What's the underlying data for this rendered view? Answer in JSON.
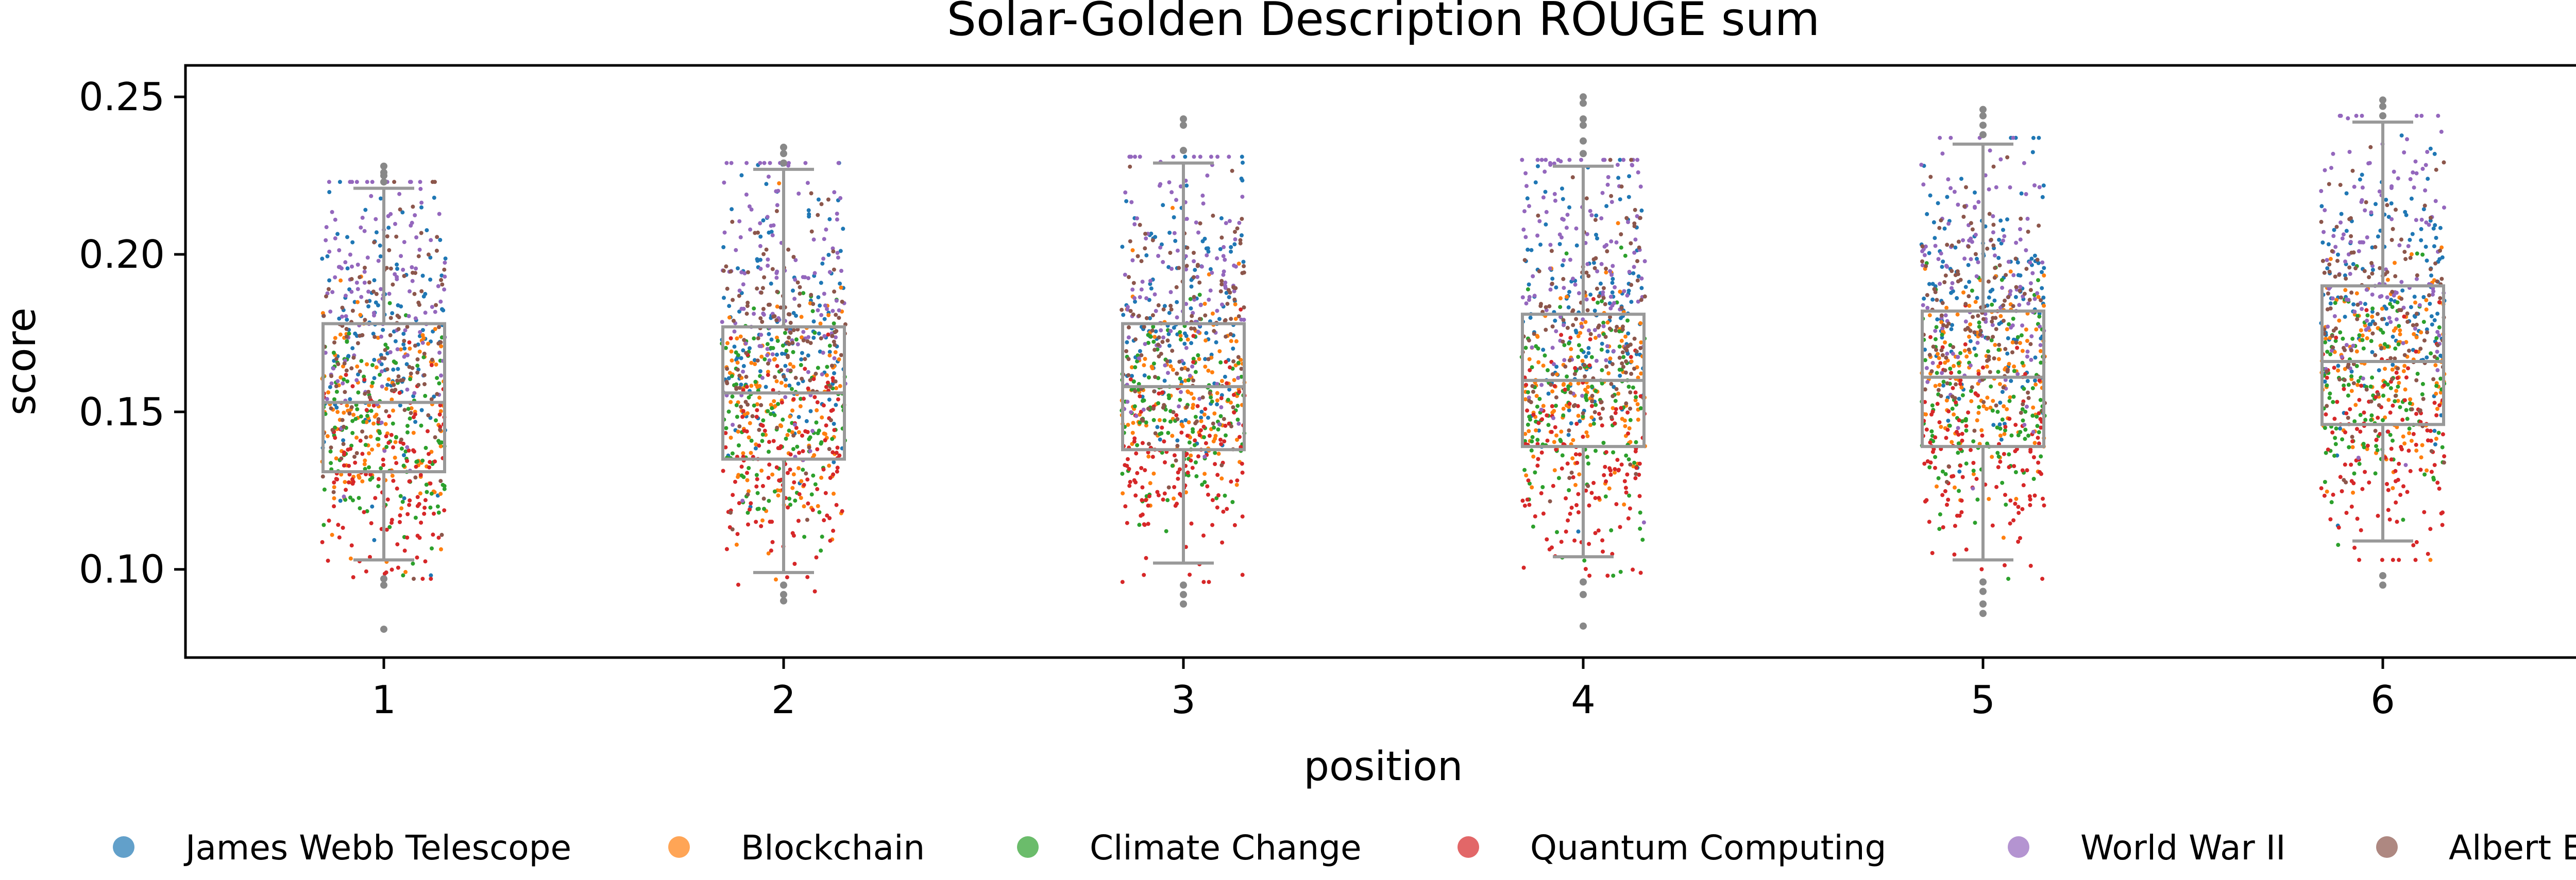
{
  "chart_data": {
    "type": "box+strip",
    "title": "Solar-Golden Description ROUGE sum",
    "xlabel": "position",
    "ylabel": "score",
    "categories": [
      "1",
      "2",
      "3",
      "4",
      "5",
      "6"
    ],
    "ylim": [
      0.072,
      0.26
    ],
    "yticks": [
      0.1,
      0.15,
      0.2,
      0.25
    ],
    "ytick_labels": [
      "0.10",
      "0.15",
      "0.20",
      "0.25"
    ],
    "grid": false,
    "legend_position": "bottom",
    "series": [
      {
        "name": "James Webb Telescope",
        "color": "#1f77b4",
        "center": 0.175,
        "spread": 0.022
      },
      {
        "name": "Blockchain",
        "color": "#ff7f0e",
        "center": 0.15,
        "spread": 0.018
      },
      {
        "name": "Climate Change",
        "color": "#2ca02c",
        "center": 0.145,
        "spread": 0.018
      },
      {
        "name": "Quantum Computing",
        "color": "#d62728",
        "center": 0.128,
        "spread": 0.018
      },
      {
        "name": "World War II",
        "color": "#9467bd",
        "center": 0.188,
        "spread": 0.024
      },
      {
        "name": "Albert Einstein",
        "color": "#8c564b",
        "center": 0.17,
        "spread": 0.022
      }
    ],
    "boxes": [
      {
        "position": "1",
        "whislo": 0.103,
        "q1": 0.131,
        "median": 0.153,
        "q3": 0.178,
        "whishi": 0.221,
        "fliers": [
          0.081,
          0.095,
          0.097,
          0.223,
          0.225,
          0.226,
          0.228
        ]
      },
      {
        "position": "2",
        "whislo": 0.099,
        "q1": 0.135,
        "median": 0.156,
        "q3": 0.177,
        "whishi": 0.227,
        "fliers": [
          0.09,
          0.092,
          0.095,
          0.229,
          0.232,
          0.234
        ]
      },
      {
        "position": "3",
        "whislo": 0.102,
        "q1": 0.138,
        "median": 0.158,
        "q3": 0.178,
        "whishi": 0.229,
        "fliers": [
          0.089,
          0.092,
          0.095,
          0.233,
          0.241,
          0.243
        ]
      },
      {
        "position": "4",
        "whislo": 0.104,
        "q1": 0.139,
        "median": 0.16,
        "q3": 0.181,
        "whishi": 0.228,
        "fliers": [
          0.082,
          0.092,
          0.096,
          0.232,
          0.236,
          0.241,
          0.243,
          0.248,
          0.25
        ]
      },
      {
        "position": "5",
        "whislo": 0.103,
        "q1": 0.139,
        "median": 0.161,
        "q3": 0.182,
        "whishi": 0.235,
        "fliers": [
          0.086,
          0.089,
          0.093,
          0.096,
          0.238,
          0.241,
          0.244,
          0.246
        ]
      },
      {
        "position": "6",
        "whislo": 0.109,
        "q1": 0.146,
        "median": 0.166,
        "q3": 0.19,
        "whishi": 0.242,
        "fliers": [
          0.095,
          0.098,
          0.244,
          0.247,
          0.249
        ]
      }
    ]
  }
}
